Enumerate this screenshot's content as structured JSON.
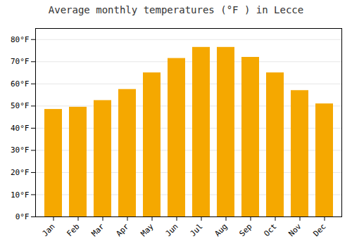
{
  "chart_data": {
    "type": "bar",
    "title": "Average monthly temperatures (°F ) in Lecce",
    "categories": [
      "Jan",
      "Feb",
      "Mar",
      "Apr",
      "May",
      "Jun",
      "Jul",
      "Aug",
      "Sep",
      "Oct",
      "Nov",
      "Dec"
    ],
    "values": [
      48.5,
      49.5,
      52.5,
      57.5,
      65.0,
      71.5,
      76.5,
      76.5,
      72.0,
      65.0,
      57.0,
      51.0
    ],
    "color": "#F5A800",
    "ylim": [
      0,
      85
    ],
    "yticks": [
      {
        "value": 0,
        "label": "0°F"
      },
      {
        "value": 10,
        "label": "10°F"
      },
      {
        "value": 20,
        "label": "20°F"
      },
      {
        "value": 30,
        "label": "30°F"
      },
      {
        "value": 40,
        "label": "40°F"
      },
      {
        "value": 50,
        "label": "50°F"
      },
      {
        "value": 60,
        "label": "60°F"
      },
      {
        "value": 70,
        "label": "70°F"
      },
      {
        "value": 80,
        "label": "80°F"
      }
    ],
    "grid": true
  }
}
